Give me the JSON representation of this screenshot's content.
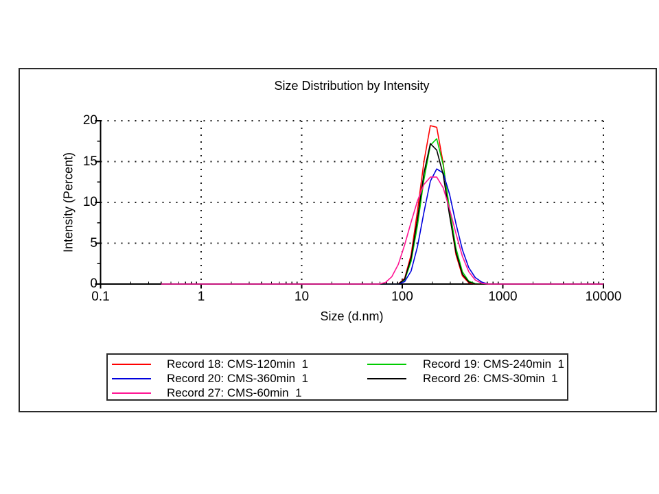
{
  "page": {
    "background": "#ffffff",
    "frame_border_color": "#2a2a2a",
    "text_color": "#000000"
  },
  "chart_data": {
    "type": "line",
    "title": "Size Distribution by Intensity",
    "xlabel": "Size (d.nm)",
    "ylabel": "Intensity (Percent)",
    "x_scale": "log",
    "xlim": [
      0.1,
      10000
    ],
    "ylim": [
      0,
      20
    ],
    "grid": "dotted",
    "grid_color": "#1a1a1a",
    "x_ticks": [
      {
        "value": 0.1,
        "label": "0.1"
      },
      {
        "value": 1,
        "label": "1"
      },
      {
        "value": 10,
        "label": "10"
      },
      {
        "value": 100,
        "label": "100"
      },
      {
        "value": 1000,
        "label": "1000"
      },
      {
        "value": 10000,
        "label": "10000"
      }
    ],
    "y_ticks": [
      {
        "value": 0,
        "label": "0"
      },
      {
        "value": 5,
        "label": "5"
      },
      {
        "value": 10,
        "label": "10"
      },
      {
        "value": 15,
        "label": "15"
      },
      {
        "value": 20,
        "label": "20"
      }
    ],
    "y_minor_ticks": [
      2.5,
      7.5,
      12.5,
      17.5
    ],
    "grid_x_values": [
      1,
      10,
      100,
      1000,
      10000
    ],
    "grid_y_values": [
      5,
      10,
      15,
      20
    ],
    "series": [
      {
        "name": "Record 18: CMS-120min  1",
        "color": "#ff0000",
        "points": [
          [
            0.4,
            0
          ],
          [
            91.3,
            0
          ],
          [
            105.7,
            0.7
          ],
          [
            122.4,
            3.6
          ],
          [
            141.8,
            9.0
          ],
          [
            164.2,
            15.0
          ],
          [
            190.1,
            19.4
          ],
          [
            220.2,
            19.2
          ],
          [
            255,
            14.8
          ],
          [
            295.3,
            8.6
          ],
          [
            342,
            3.6
          ],
          [
            396.1,
            1.0
          ],
          [
            458.7,
            0.15
          ],
          [
            531.2,
            0
          ],
          [
            10000,
            0
          ]
        ]
      },
      {
        "name": "Record 19: CMS-240min  1",
        "color": "#00cc00",
        "points": [
          [
            0.4,
            0
          ],
          [
            91.3,
            0
          ],
          [
            105.7,
            0.5
          ],
          [
            122.4,
            2.8
          ],
          [
            141.8,
            7.2
          ],
          [
            164.2,
            12.8
          ],
          [
            190.1,
            17.0
          ],
          [
            220.2,
            17.8
          ],
          [
            255,
            14.6
          ],
          [
            295.3,
            9.2
          ],
          [
            342,
            4.4
          ],
          [
            396.1,
            1.5
          ],
          [
            458.7,
            0.35
          ],
          [
            531.2,
            0.05
          ],
          [
            615.1,
            0
          ],
          [
            10000,
            0
          ]
        ]
      },
      {
        "name": "Record 20: CMS-360min  1",
        "color": "#0000dd",
        "points": [
          [
            0.4,
            0
          ],
          [
            91.3,
            0
          ],
          [
            105.7,
            0.3
          ],
          [
            122.4,
            1.6
          ],
          [
            141.8,
            4.6
          ],
          [
            164.2,
            8.8
          ],
          [
            190.1,
            12.6
          ],
          [
            220.2,
            14.1
          ],
          [
            255,
            13.6
          ],
          [
            295.3,
            11.0
          ],
          [
            342,
            7.4
          ],
          [
            396.1,
            4.2
          ],
          [
            458.7,
            2.0
          ],
          [
            531.2,
            0.8
          ],
          [
            615.1,
            0.25
          ],
          [
            712.4,
            0
          ],
          [
            10000,
            0
          ]
        ]
      },
      {
        "name": "Record 26: CMS-30min  1",
        "color": "#000000",
        "points": [
          [
            0.4,
            0
          ],
          [
            91.3,
            0
          ],
          [
            105.7,
            0.6
          ],
          [
            122.4,
            3.2
          ],
          [
            141.8,
            8.0
          ],
          [
            164.2,
            13.6
          ],
          [
            190.1,
            17.2
          ],
          [
            220.2,
            16.4
          ],
          [
            255,
            13.4
          ],
          [
            295.3,
            8.4
          ],
          [
            342,
            3.9
          ],
          [
            396.1,
            1.2
          ],
          [
            458.7,
            0.25
          ],
          [
            531.2,
            0
          ],
          [
            10000,
            0
          ]
        ]
      },
      {
        "name": "Record 27: CMS-60min  1",
        "color": "#ff1493",
        "points": [
          [
            0.4,
            0
          ],
          [
            58.8,
            0
          ],
          [
            68.1,
            0.2
          ],
          [
            78.8,
            0.9
          ],
          [
            91.3,
            2.4
          ],
          [
            105.7,
            4.8
          ],
          [
            122.4,
            7.6
          ],
          [
            141.8,
            10.2
          ],
          [
            164.2,
            12.2
          ],
          [
            190.1,
            13.1
          ],
          [
            220.2,
            13.1
          ],
          [
            255,
            11.8
          ],
          [
            295.3,
            9.2
          ],
          [
            342,
            6.2
          ],
          [
            396.1,
            3.4
          ],
          [
            458.7,
            1.5
          ],
          [
            531.2,
            0.5
          ],
          [
            615.1,
            0.1
          ],
          [
            712.4,
            0
          ],
          [
            10000,
            0
          ]
        ]
      }
    ],
    "legend": {
      "position": "bottom",
      "left_column_series": [
        0,
        2,
        4
      ],
      "right_column_series": [
        1,
        3
      ]
    }
  }
}
